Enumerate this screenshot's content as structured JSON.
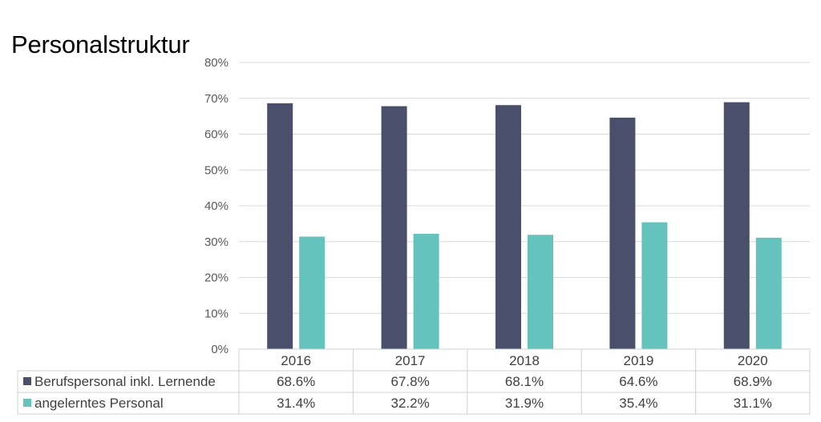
{
  "title": "Personalstruktur",
  "colors": {
    "series1": "#4a4f6b",
    "series2": "#64c4bd",
    "grid": "#d9d9d9",
    "table_border": "#d0d0d0",
    "text": "#404040",
    "tick": "#595959"
  },
  "chart_data": {
    "type": "bar",
    "title": "Personalstruktur",
    "categories": [
      "2016",
      "2017",
      "2018",
      "2019",
      "2020"
    ],
    "series": [
      {
        "name": "Berufspersonal inkl. Lernende",
        "values": [
          68.6,
          67.8,
          68.1,
          64.6,
          68.9
        ],
        "labels": [
          "68.6%",
          "67.8%",
          "68.1%",
          "64.6%",
          "68.9%"
        ]
      },
      {
        "name": "angelerntes Personal",
        "values": [
          31.4,
          32.2,
          31.9,
          35.4,
          31.1
        ],
        "labels": [
          "31.4%",
          "32.2%",
          "31.9%",
          "35.4%",
          "31.1%"
        ]
      }
    ],
    "ylim": [
      0,
      80
    ],
    "yticks": [
      0,
      10,
      20,
      30,
      40,
      50,
      60,
      70,
      80
    ],
    "ytick_labels": [
      "0%",
      "10%",
      "20%",
      "30%",
      "40%",
      "50%",
      "60%",
      "70%",
      "80%"
    ],
    "grid": true,
    "legend": "data-table"
  }
}
